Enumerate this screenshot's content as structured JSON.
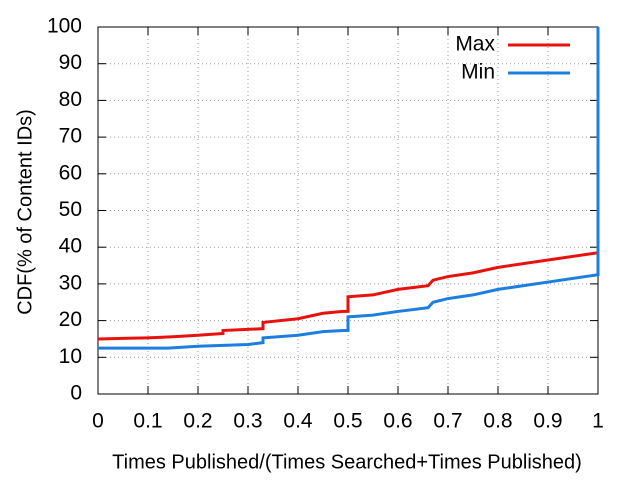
{
  "chart_data": {
    "type": "line",
    "xlabel": "Times Published/(Times Searched+Times Published)",
    "ylabel": "CDF(% of Content IDs)",
    "xlim": [
      0,
      1
    ],
    "ylim": [
      0,
      100
    ],
    "xticks": [
      0,
      0.1,
      0.2,
      0.3,
      0.4,
      0.5,
      0.6,
      0.7,
      0.8,
      0.9,
      1
    ],
    "yticks": [
      0,
      10,
      20,
      30,
      40,
      50,
      60,
      70,
      80,
      90,
      100
    ],
    "grid": true,
    "legend": "top-right",
    "series": [
      {
        "name": "Max",
        "color": "#e8120c",
        "x": [
          0,
          0.1,
          0.15,
          0.2,
          0.25,
          0.25,
          0.33,
          0.33,
          0.4,
          0.45,
          0.49,
          0.5,
          0.5,
          0.55,
          0.6,
          0.66,
          0.67,
          0.7,
          0.75,
          0.8,
          0.9,
          1,
          1
        ],
        "values": [
          15,
          15.3,
          15.6,
          16,
          16.5,
          17.3,
          17.8,
          19.5,
          20.5,
          22,
          22.5,
          22.5,
          26.5,
          27,
          28.5,
          29.5,
          31,
          32,
          33,
          34.5,
          36.5,
          38.5,
          100
        ]
      },
      {
        "name": "Min",
        "color": "#1c7fe0",
        "x": [
          0,
          0.14,
          0.2,
          0.3,
          0.33,
          0.33,
          0.4,
          0.45,
          0.49,
          0.5,
          0.5,
          0.55,
          0.6,
          0.66,
          0.67,
          0.7,
          0.75,
          0.8,
          0.9,
          1,
          1
        ],
        "values": [
          12.5,
          12.5,
          13,
          13.5,
          14,
          15.3,
          16,
          17,
          17.3,
          17.3,
          21,
          21.5,
          22.5,
          23.5,
          25,
          26,
          27,
          28.5,
          30.5,
          32.5,
          100
        ]
      }
    ]
  }
}
